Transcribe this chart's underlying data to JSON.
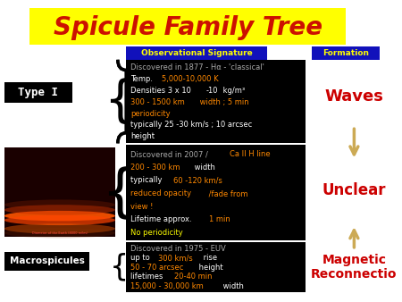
{
  "title": "Spicule Family Tree",
  "title_color": "#CC1100",
  "title_bg": "#FFFF00",
  "title_fontsize": 20,
  "obs_label": "Observational Signature",
  "obs_label_bg": "#1111BB",
  "obs_label_color": "#FFFF00",
  "formation_label": "Formation",
  "formation_label_bg": "#1111BB",
  "formation_label_color": "#FFFF00",
  "type1_label": "Type I",
  "macro_label": "Macrospicules",
  "waves_text": "Waves",
  "waves_color": "#CC0000",
  "unclear_text": "Unclear",
  "unclear_color": "#CC0000",
  "magrec_text": "Magnetic\nReconnectio",
  "magrec_color": "#CC0000",
  "arrow_color": "#CCAA55",
  "bg_color": "#FFFFFF",
  "panel_bg": "#000000",
  "label_box_bg": "#000000",
  "label_box_color": "#FFFFFF",
  "panel1_lines": [
    [
      {
        "t": "Discovered in 1877 - Hα - 'classical'",
        "c": "#AAAAAA"
      }
    ],
    [
      {
        "t": "Temp. ",
        "c": "#FFFFFF"
      },
      {
        "t": "5,000-10,000 K",
        "c": "#FF8800"
      }
    ],
    [
      {
        "t": "Densities 3 x 10",
        "c": "#FFFFFF"
      },
      {
        "t": "-10",
        "c": "#FFFFFF",
        "sup": true
      },
      {
        "t": " kg/m³",
        "c": "#FFFFFF"
      }
    ],
    [
      {
        "t": "300 - 1500 km",
        "c": "#FF8800"
      },
      {
        "t": " width ; 5 min",
        "c": "#FF8800"
      }
    ],
    [
      {
        "t": "periodicity",
        "c": "#FF8800"
      }
    ],
    [
      {
        "t": "typically 25 -30 km/s ; 10 arcsec",
        "c": "#FFFFFF"
      }
    ],
    [
      {
        "t": "height",
        "c": "#FFFFFF"
      }
    ]
  ],
  "panel2_lines": [
    [
      {
        "t": "Discovered in 2007 / ",
        "c": "#AAAAAA"
      },
      {
        "t": "Ca II H line",
        "c": "#FF8800"
      }
    ],
    [
      {
        "t": "200 - 300 km",
        "c": "#FF8800"
      },
      {
        "t": " width",
        "c": "#FFFFFF"
      }
    ],
    [
      {
        "t": "typically ",
        "c": "#FFFFFF"
      },
      {
        "t": "60 -120 km/s",
        "c": "#FF8800"
      }
    ],
    [
      {
        "t": "reduced opacity",
        "c": "#FF8800"
      },
      {
        "t": " /fade from",
        "c": "#FF8800"
      }
    ],
    [
      {
        "t": "view !",
        "c": "#FF8800"
      }
    ],
    [
      {
        "t": "Lifetime approx. ",
        "c": "#FFFFFF"
      },
      {
        "t": "1 min",
        "c": "#FF8800"
      }
    ],
    [
      {
        "t": "No periodicity",
        "c": "#FFFF00"
      }
    ]
  ],
  "panel3_lines": [
    [
      {
        "t": "Discovered in 1975 - EUV",
        "c": "#AAAAAA"
      }
    ],
    [
      {
        "t": "up to ",
        "c": "#FFFFFF"
      },
      {
        "t": "300 km/s",
        "c": "#FF8800"
      },
      {
        "t": " rise",
        "c": "#FFFFFF"
      }
    ],
    [
      {
        "t": "50 - 70 arcsec",
        "c": "#FF8800"
      },
      {
        "t": " height",
        "c": "#FFFFFF"
      }
    ],
    [
      {
        "t": "lifetimes ",
        "c": "#FFFFFF"
      },
      {
        "t": "20-40 min",
        "c": "#FF8800"
      }
    ],
    [
      {
        "t": "15,000 - 30,000 km",
        "c": "#FF8800"
      },
      {
        "t": " width",
        "c": "#FFFFFF"
      }
    ]
  ]
}
